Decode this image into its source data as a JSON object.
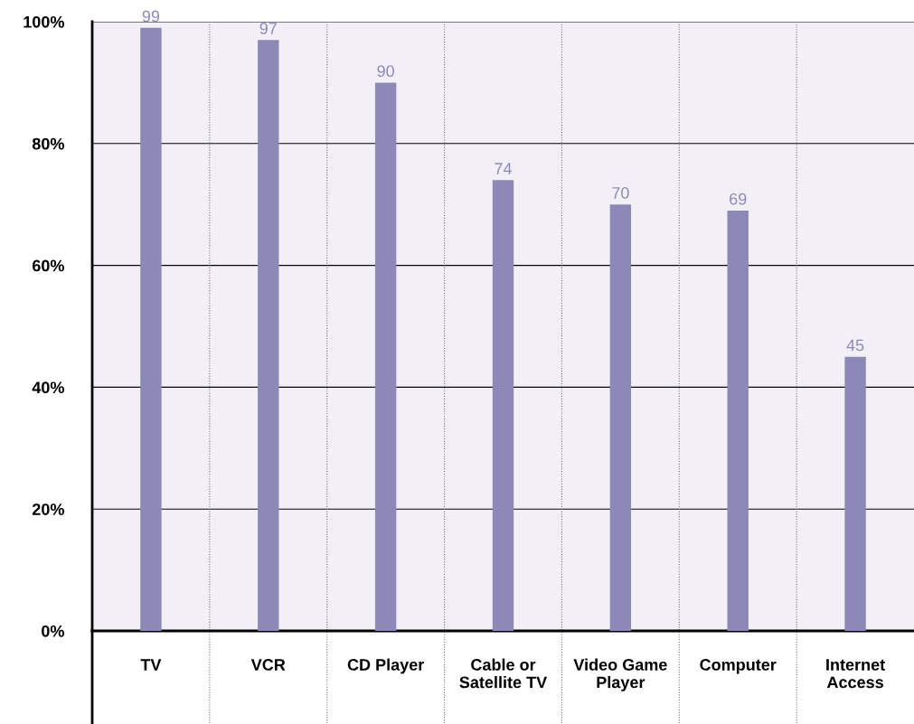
{
  "chart_data": {
    "type": "bar",
    "categories": [
      "TV",
      "VCR",
      "CD Player",
      "Cable or\nSatellite TV",
      "Video Game\nPlayer",
      "Computer",
      "Internet\nAccess"
    ],
    "values": [
      99,
      97,
      90,
      74,
      70,
      69,
      45
    ],
    "color": "#8c89b8",
    "data_labels": true,
    "ylim": [
      0,
      100
    ],
    "yticks": [
      {
        "value": 0,
        "label": "0%"
      },
      {
        "value": 20,
        "label": "20%"
      },
      {
        "value": 40,
        "label": "40%"
      },
      {
        "value": 60,
        "label": "60%"
      },
      {
        "value": 80,
        "label": "80%"
      },
      {
        "value": 100,
        "label": "100%"
      }
    ],
    "grid": "y"
  }
}
